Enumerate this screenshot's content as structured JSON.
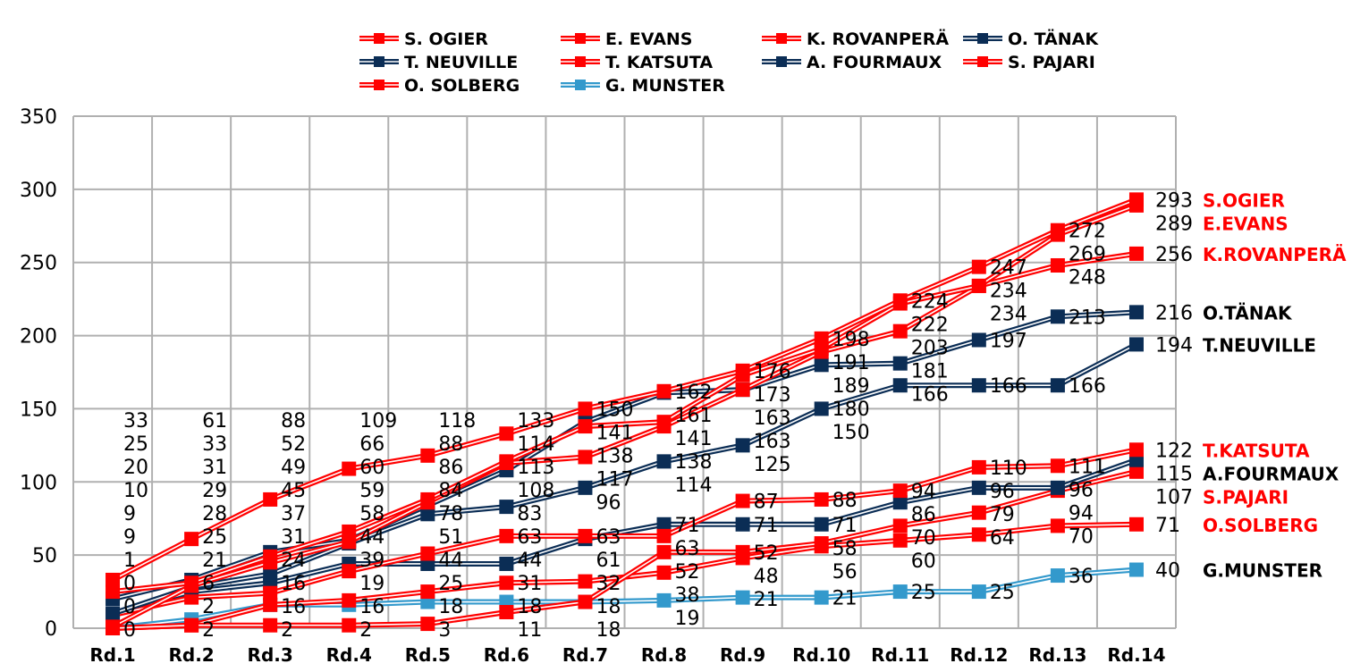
{
  "chart_data": {
    "type": "line",
    "title": "",
    "xlabel": "",
    "ylabel": "",
    "ylim": [
      0,
      350
    ],
    "yticks": [
      0,
      50,
      100,
      150,
      200,
      250,
      300,
      350
    ],
    "grid": true,
    "legend_position": "top",
    "categories": [
      "Rd.1",
      "Rd.2",
      "Rd.3",
      "Rd.4",
      "Rd.5",
      "Rd.6",
      "Rd.7",
      "Rd.8",
      "Rd.9",
      "Rd.10",
      "Rd.11",
      "Rd.12",
      "Rd.13",
      "Rd.14"
    ],
    "series": [
      {
        "name": "S. OGIER",
        "end_label": "S.OGIER",
        "color": "#ff0000",
        "end_label_color": "#ff0000",
        "values": [
          33,
          61,
          88,
          109,
          118,
          133,
          150,
          162,
          176,
          198,
          224,
          247,
          272,
          293
        ]
      },
      {
        "name": "E. EVANS",
        "end_label": "E.EVANS",
        "color": "#ff0000",
        "end_label_color": "#ff0000",
        "values": [
          25,
          31,
          49,
          66,
          88,
          114,
          138,
          141,
          173,
          191,
          222,
          234,
          269,
          289
        ]
      },
      {
        "name": "K. ROVANPERÄ",
        "end_label": "K.ROVANPERÄ",
        "color": "#ff0000",
        "end_label_color": "#ff0000",
        "values": [
          1,
          29,
          45,
          59,
          86,
          113,
          117,
          138,
          163,
          189,
          203,
          234,
          248,
          256
        ]
      },
      {
        "name": "O. TÄNAK",
        "end_label": "O.TÄNAK",
        "color": "#0b2d55",
        "end_label_color": "#000000",
        "values": [
          20,
          33,
          52,
          60,
          84,
          108,
          141,
          161,
          163,
          180,
          181,
          197,
          213,
          216
        ]
      },
      {
        "name": "T. NEUVILLE",
        "end_label": "T.NEUVILLE",
        "color": "#0b2d55",
        "end_label_color": "#000000",
        "values": [
          10,
          28,
          37,
          58,
          78,
          83,
          96,
          114,
          125,
          150,
          166,
          166,
          166,
          194
        ]
      },
      {
        "name": "T. KATSUTA",
        "end_label": "T.KATSUTA",
        "color": "#ff0000",
        "end_label_color": "#ff0000",
        "values": [
          9,
          21,
          24,
          39,
          51,
          63,
          63,
          63,
          87,
          88,
          94,
          110,
          111,
          122
        ]
      },
      {
        "name": "A. FOURMAUX",
        "end_label": "A.FOURMAUX",
        "color": "#0b2d55",
        "end_label_color": "#000000",
        "values": [
          9,
          25,
          31,
          44,
          44,
          44,
          61,
          71,
          71,
          71,
          86,
          96,
          96,
          115
        ]
      },
      {
        "name": "S. PAJARI",
        "end_label": "S.PAJARI",
        "color": "#ff0000",
        "end_label_color": "#ff0000",
        "values": [
          0,
          2,
          2,
          2,
          3,
          11,
          18,
          52,
          52,
          58,
          70,
          79,
          94,
          107
        ]
      },
      {
        "name": "O. SOLBERG",
        "end_label": "O.SOLBERG",
        "color": "#ff0000",
        "end_label_color": "#ff0000",
        "values": [
          0,
          2,
          16,
          19,
          25,
          31,
          32,
          38,
          48,
          56,
          60,
          64,
          70,
          71
        ]
      },
      {
        "name": "G. MUNSTER",
        "end_label": "G.MUNSTER",
        "color": "#3399cc",
        "end_label_color": "#000000",
        "values": [
          0,
          6,
          16,
          16,
          18,
          18,
          18,
          19,
          21,
          21,
          25,
          25,
          36,
          40
        ]
      }
    ]
  }
}
